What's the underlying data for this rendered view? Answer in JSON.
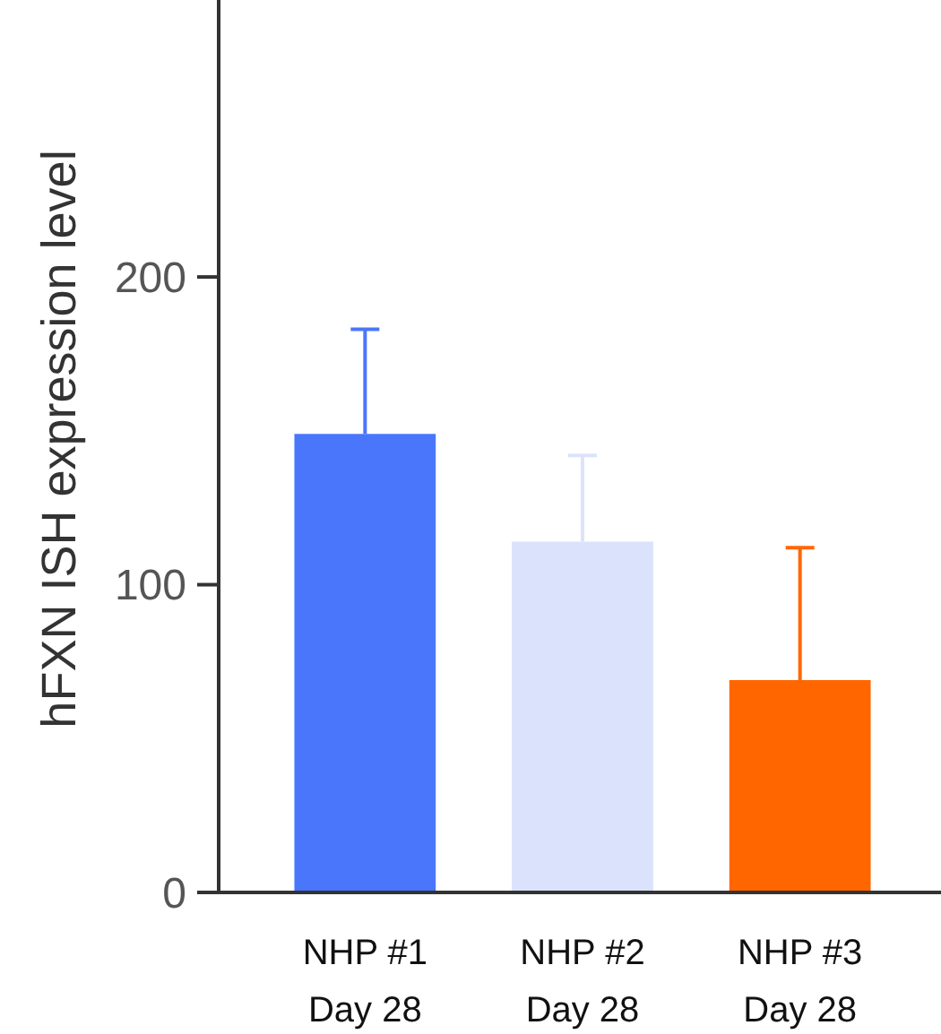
{
  "chart_data": {
    "type": "bar",
    "ylabel": "hFXN ISH expression level",
    "categories": [
      "NHP #1\nDay 28",
      "NHP #2\nDay 28",
      "NHP #3\nDay 28"
    ],
    "values": [
      149,
      114,
      69
    ],
    "colors": [
      "#4a76fb",
      "#dbe3fc",
      "#ff6600"
    ],
    "errors": [
      [
        149,
        183
      ],
      [
        114,
        142
      ],
      [
        69,
        112
      ]
    ],
    "ylim": [
      0,
      290
    ],
    "yticks": [
      0,
      100,
      200
    ]
  }
}
